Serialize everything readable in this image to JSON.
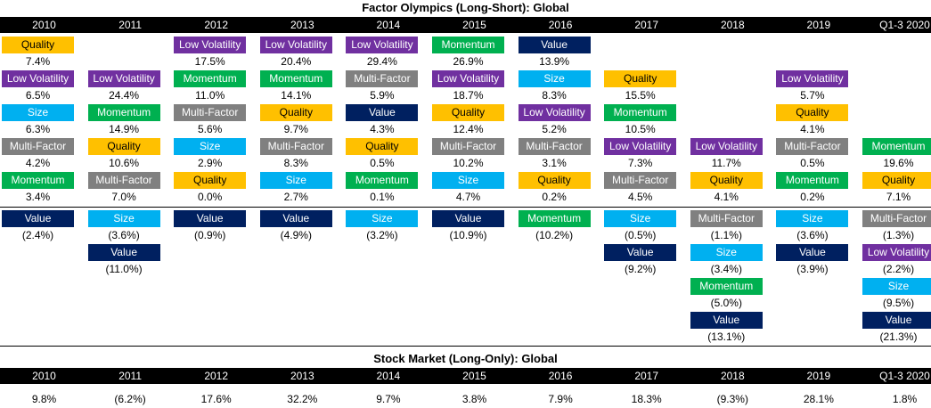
{
  "colors": {
    "Quality": "#FFC000",
    "Low Volatility": "#7030A0",
    "Size": "#00B0F0",
    "Multi-Factor": "#808080",
    "Momentum": "#00B050",
    "Value": "#002060"
  },
  "title_factor": "Factor Olympics (Long-Short): Global",
  "title_market": "Stock Market (Long-Only): Global",
  "years": [
    "2010",
    "2011",
    "2012",
    "2013",
    "2014",
    "2015",
    "2016",
    "2017",
    "2018",
    "2019",
    "Q1-3 2020"
  ],
  "chart_data": [
    {
      "type": "table",
      "title": "Factor Olympics (Long-Short): Global",
      "columns": [
        {
          "year": "2010",
          "positive": [
            {
              "factor": "Quality",
              "value": "7.4%"
            },
            {
              "factor": "Low Volatility",
              "value": "6.5%"
            },
            {
              "factor": "Size",
              "value": "6.3%"
            },
            {
              "factor": "Multi-Factor",
              "value": "4.2%"
            },
            {
              "factor": "Momentum",
              "value": "3.4%"
            }
          ],
          "negative": [
            {
              "factor": "Value",
              "value": "(2.4%)"
            }
          ]
        },
        {
          "year": "2011",
          "positive": [
            null,
            {
              "factor": "Low Volatility",
              "value": "24.4%"
            },
            {
              "factor": "Momentum",
              "value": "14.9%"
            },
            {
              "factor": "Quality",
              "value": "10.6%"
            },
            {
              "factor": "Multi-Factor",
              "value": "7.0%"
            }
          ],
          "negative": [
            {
              "factor": "Size",
              "value": "(3.6%)"
            },
            {
              "factor": "Value",
              "value": "(11.0%)"
            }
          ]
        },
        {
          "year": "2012",
          "positive": [
            {
              "factor": "Low Volatility",
              "value": "17.5%"
            },
            {
              "factor": "Momentum",
              "value": "11.0%"
            },
            {
              "factor": "Multi-Factor",
              "value": "5.6%"
            },
            {
              "factor": "Size",
              "value": "2.9%"
            },
            {
              "factor": "Quality",
              "value": "0.0%"
            }
          ],
          "negative": [
            {
              "factor": "Value",
              "value": "(0.9%)"
            }
          ]
        },
        {
          "year": "2013",
          "positive": [
            {
              "factor": "Low Volatility",
              "value": "20.4%"
            },
            {
              "factor": "Momentum",
              "value": "14.1%"
            },
            {
              "factor": "Quality",
              "value": "9.7%"
            },
            {
              "factor": "Multi-Factor",
              "value": "8.3%"
            },
            {
              "factor": "Size",
              "value": "2.7%"
            }
          ],
          "negative": [
            {
              "factor": "Value",
              "value": "(4.9%)"
            }
          ]
        },
        {
          "year": "2014",
          "positive": [
            {
              "factor": "Low Volatility",
              "value": "29.4%"
            },
            {
              "factor": "Multi-Factor",
              "value": "5.9%"
            },
            {
              "factor": "Value",
              "value": "4.3%"
            },
            {
              "factor": "Quality",
              "value": "0.5%"
            },
            {
              "factor": "Momentum",
              "value": "0.1%"
            }
          ],
          "negative": [
            {
              "factor": "Size",
              "value": "(3.2%)"
            }
          ]
        },
        {
          "year": "2015",
          "positive": [
            {
              "factor": "Momentum",
              "value": "26.9%"
            },
            {
              "factor": "Low Volatility",
              "value": "18.7%"
            },
            {
              "factor": "Quality",
              "value": "12.4%"
            },
            {
              "factor": "Multi-Factor",
              "value": "10.2%"
            },
            {
              "factor": "Size",
              "value": "4.7%"
            }
          ],
          "negative": [
            {
              "factor": "Value",
              "value": "(10.9%)"
            }
          ]
        },
        {
          "year": "2016",
          "positive": [
            {
              "factor": "Value",
              "value": "13.9%"
            },
            {
              "factor": "Size",
              "value": "8.3%"
            },
            {
              "factor": "Low Volatility",
              "value": "5.2%"
            },
            {
              "factor": "Multi-Factor",
              "value": "3.1%"
            },
            {
              "factor": "Quality",
              "value": "0.2%"
            }
          ],
          "negative": [
            {
              "factor": "Momentum",
              "value": "(10.2%)"
            }
          ]
        },
        {
          "year": "2017",
          "positive": [
            null,
            {
              "factor": "Quality",
              "value": "15.5%"
            },
            {
              "factor": "Momentum",
              "value": "10.5%"
            },
            {
              "factor": "Low Volatility",
              "value": "7.3%"
            },
            {
              "factor": "Multi-Factor",
              "value": "4.5%"
            }
          ],
          "negative": [
            {
              "factor": "Size",
              "value": "(0.5%)"
            },
            {
              "factor": "Value",
              "value": "(9.2%)"
            }
          ]
        },
        {
          "year": "2018",
          "positive": [
            null,
            null,
            null,
            {
              "factor": "Low Volatility",
              "value": "11.7%"
            },
            {
              "factor": "Quality",
              "value": "4.1%"
            }
          ],
          "negative": [
            {
              "factor": "Multi-Factor",
              "value": "(1.1%)"
            },
            {
              "factor": "Size",
              "value": "(3.4%)"
            },
            {
              "factor": "Momentum",
              "value": "(5.0%)"
            },
            {
              "factor": "Value",
              "value": "(13.1%)"
            }
          ]
        },
        {
          "year": "2019",
          "positive": [
            null,
            {
              "factor": "Low Volatility",
              "value": "5.7%"
            },
            {
              "factor": "Quality",
              "value": "4.1%"
            },
            {
              "factor": "Multi-Factor",
              "value": "0.5%"
            },
            {
              "factor": "Momentum",
              "value": "0.2%"
            }
          ],
          "negative": [
            {
              "factor": "Size",
              "value": "(3.6%)"
            },
            {
              "factor": "Value",
              "value": "(3.9%)"
            }
          ]
        },
        {
          "year": "Q1-3 2020",
          "positive": [
            null,
            null,
            null,
            {
              "factor": "Momentum",
              "value": "19.6%"
            },
            {
              "factor": "Quality",
              "value": "7.1%"
            }
          ],
          "negative": [
            {
              "factor": "Multi-Factor",
              "value": "(1.3%)"
            },
            {
              "factor": "Low Volatility",
              "value": "(2.2%)"
            },
            {
              "factor": "Size",
              "value": "(9.5%)"
            },
            {
              "factor": "Value",
              "value": "(21.3%)"
            }
          ]
        }
      ]
    },
    {
      "type": "table",
      "title": "Stock Market (Long-Only): Global",
      "categories": [
        "2010",
        "2011",
        "2012",
        "2013",
        "2014",
        "2015",
        "2016",
        "2017",
        "2018",
        "2019",
        "Q1-3 2020"
      ],
      "values": [
        "9.8%",
        "(6.2%)",
        "17.6%",
        "32.2%",
        "9.7%",
        "3.8%",
        "7.9%",
        "18.3%",
        "(9.3%)",
        "28.1%",
        "1.8%"
      ]
    }
  ]
}
